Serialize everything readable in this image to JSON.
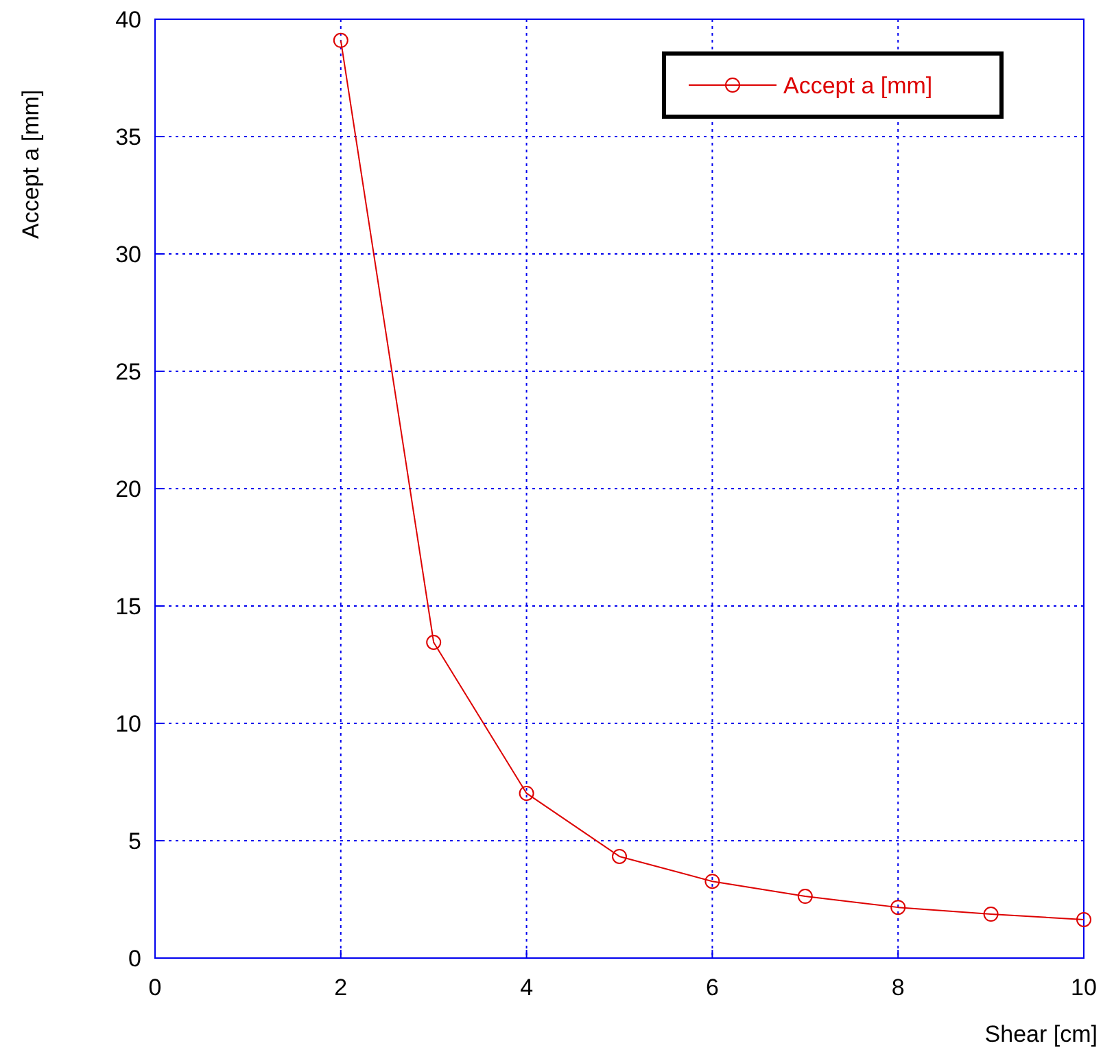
{
  "chart_data": {
    "type": "line",
    "xlabel": "Shear [cm]",
    "ylabel": "Accept a [mm]",
    "x": [
      2,
      3,
      4,
      5,
      6,
      7,
      8,
      9,
      10
    ],
    "series": [
      {
        "name": "Accept a [mm]",
        "color": "#dd0000",
        "values": [
          39.1,
          13.45,
          7.02,
          4.33,
          3.27,
          2.63,
          2.16,
          1.87,
          1.64
        ]
      }
    ],
    "xlim": [
      0,
      10
    ],
    "xticks": [
      0,
      2,
      4,
      6,
      8,
      10
    ],
    "ylim": [
      0,
      40
    ],
    "yticks": [
      0,
      5,
      10,
      15,
      20,
      25,
      30,
      35,
      40
    ],
    "grid": true,
    "legend": "top right",
    "marker": "circle",
    "line_style": "solid"
  }
}
